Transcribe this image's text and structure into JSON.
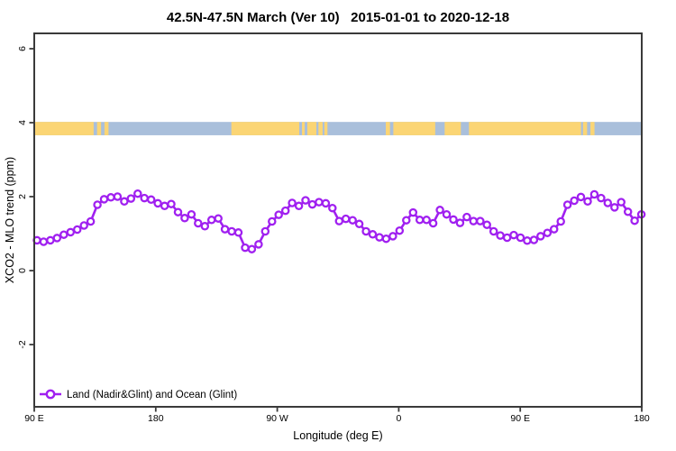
{
  "title": "42.5N-47.5N March (Ver 10)   2015-01-01 to 2020-12-18",
  "axes": {
    "x_label": "Longitude (deg E)",
    "y_label": "XCO2 - MLO trend (ppm)"
  },
  "legend": {
    "label": "Land (Nadir&Glint) and Ocean (Glint)"
  },
  "colors": {
    "line": "#A020F0",
    "marker_fill": "#FFFFFF",
    "land": "#FBD574",
    "ocean": "#A9BFDB",
    "frame": "#3A3A3A",
    "text": "#000000"
  },
  "chart_data": {
    "type": "line",
    "title": "42.5N-47.5N March (Ver 10)   2015-01-01 to 2020-12-18",
    "xlabel": "Longitude (deg E)",
    "ylabel": "XCO2 - MLO trend (ppm)",
    "x_tick_positions_deg": [
      0,
      90,
      180,
      270,
      360,
      450
    ],
    "x_tick_labels": [
      "90 E",
      "180",
      "90 W",
      "0",
      "90 E",
      "180"
    ],
    "x_span_deg": 450,
    "y_ticks": [
      -2,
      0,
      2,
      4,
      6
    ],
    "ylim": [
      -3.7,
      6.4
    ],
    "grid": false,
    "legend_position": "bottom-left-inside",
    "series": [
      {
        "name": "Land (Nadir&Glint) and Ocean (Glint)",
        "marker": "open-circle",
        "color": "#A020F0",
        "x0_deg": 2.0,
        "dx_deg": 4.9747,
        "values": [
          0.82,
          0.78,
          0.82,
          0.88,
          0.97,
          1.04,
          1.11,
          1.22,
          1.33,
          1.78,
          1.93,
          1.98,
          2.0,
          1.87,
          1.95,
          2.08,
          1.96,
          1.92,
          1.82,
          1.75,
          1.8,
          1.58,
          1.42,
          1.52,
          1.28,
          1.2,
          1.37,
          1.41,
          1.12,
          1.06,
          1.03,
          0.62,
          0.58,
          0.71,
          1.06,
          1.33,
          1.51,
          1.62,
          1.83,
          1.75,
          1.9,
          1.79,
          1.85,
          1.82,
          1.69,
          1.34,
          1.4,
          1.36,
          1.26,
          1.06,
          0.98,
          0.9,
          0.86,
          0.93,
          1.08,
          1.36,
          1.57,
          1.37,
          1.37,
          1.28,
          1.64,
          1.52,
          1.38,
          1.29,
          1.45,
          1.34,
          1.34,
          1.24,
          1.06,
          0.95,
          0.89,
          0.96,
          0.89,
          0.81,
          0.83,
          0.93,
          1.02,
          1.12,
          1.33,
          1.78,
          1.89,
          1.99,
          1.87,
          2.06,
          1.96,
          1.83,
          1.71,
          1.85,
          1.59,
          1.35,
          1.52
        ]
      }
    ],
    "map_strip": {
      "description": "world land/ocean band for latitude 42.5N-47.5N drawn across top of plot",
      "top_value": 4.02,
      "bottom_value": 3.66,
      "ocean_color": "#A9BFDB",
      "land_color": "#FBD574",
      "land_segments_deg": [
        [
          0,
          44
        ],
        [
          46.5,
          49.5
        ],
        [
          52,
          55
        ],
        [
          146,
          196.3
        ],
        [
          198.3,
          200.3
        ],
        [
          202.3,
          209
        ],
        [
          210.5,
          213.6
        ],
        [
          214.9,
          217.2
        ],
        [
          260.4,
          263.5
        ],
        [
          266,
          297
        ],
        [
          304,
          316
        ],
        [
          322,
          405
        ],
        [
          406.5,
          409.5
        ],
        [
          412,
          415
        ]
      ]
    }
  }
}
